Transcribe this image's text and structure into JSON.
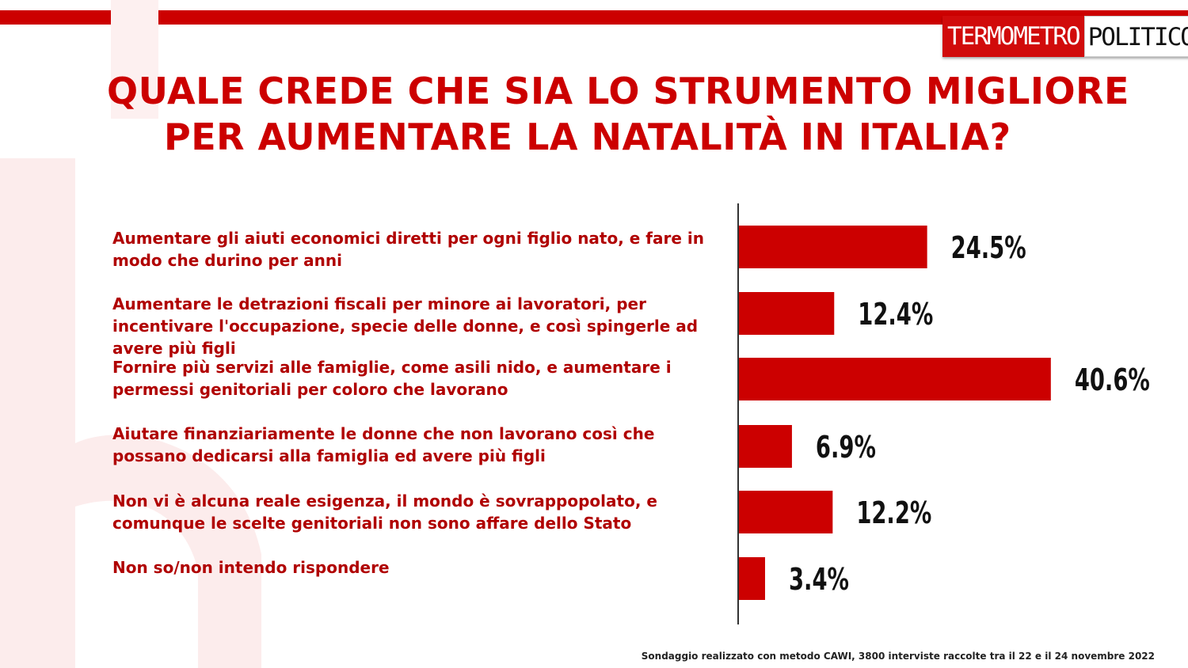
{
  "logo": {
    "part1": "TERMOMETRO",
    "part2": "POLITICO"
  },
  "chart_data": {
    "type": "bar",
    "orientation": "horizontal",
    "title": "QUALE CREDE CHE SIA LO STRUMENTO MIGLIORE PER AUMENTARE LA NATALITÀ IN ITALIA?",
    "title_lines": [
      "QUALE CREDE CHE SIA LO STRUMENTO MIGLIORE",
      "PER AUMENTARE LA NATALITÀ IN ITALIA?"
    ],
    "categories": [
      "Aumentare gli aiuti economici diretti per ogni figlio nato, e fare in modo che durino per anni",
      "Aumentare le detrazioni fiscali per minore ai lavoratori, per incentivare l'occupazione, specie delle donne, e così spingerle ad avere più figli",
      "Fornire più servizi alle famiglie, come asili nido, e aumentare i permessi genitoriali per coloro che lavorano",
      "Aiutare finanziariamente le donne che non lavorano così che possano dedicarsi alla famiglia ed avere più figli",
      "Non vi è alcuna reale esigenza, il mondo è sovrappopolato, e comunque le scelte genitoriali non sono affare dello Stato",
      "Non so/non intendo rispondere"
    ],
    "values": [
      24.5,
      12.4,
      40.6,
      6.9,
      12.2,
      3.4
    ],
    "value_labels": [
      "24.5%",
      "12.4%",
      "40.6%",
      "6.9%",
      "12.2%",
      "3.4%"
    ],
    "bar_color": "#cc0000",
    "xlim": [
      0,
      50
    ],
    "grid": false,
    "legend": "none"
  },
  "footer": "Sondaggio realizzato con metodo CAWI, 3800 interviste raccolte tra il 22 e il 24 novembre 2022",
  "colors": {
    "accent": "#cc0000",
    "label_text": "#b00000",
    "watermark": "#fbe3e3"
  }
}
